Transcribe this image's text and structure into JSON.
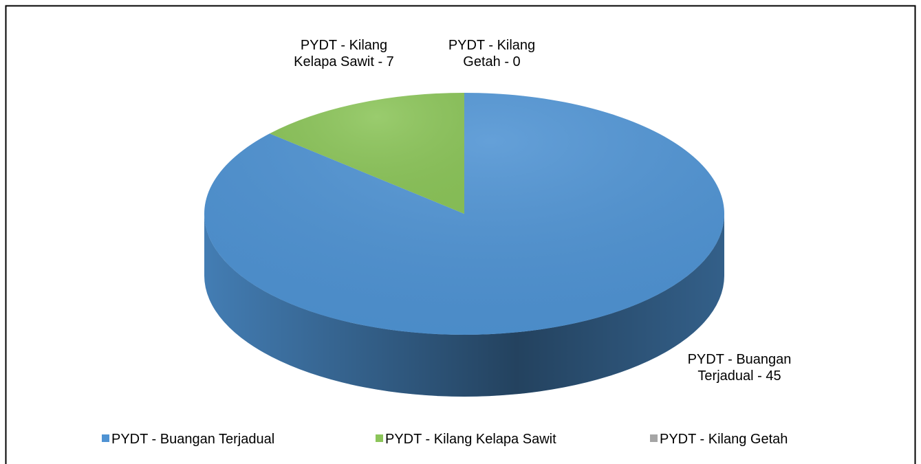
{
  "chart_data": {
    "type": "pie",
    "categories": [
      "PYDT - Buangan Terjadual",
      "PYDT - Kilang Kelapa Sawit",
      "PYDT - Kilang Getah"
    ],
    "values": [
      45,
      7,
      0
    ],
    "value_labels": [
      "PYDT - Buangan Terjadual - 45",
      "PYDT - Kilang Kelapa Sawit - 7",
      "PYDT - Kilang Getah - 0"
    ],
    "colors": [
      "#4f93d3",
      "#8cc55a",
      "#a5a5a5"
    ],
    "legend": "bottom"
  }
}
